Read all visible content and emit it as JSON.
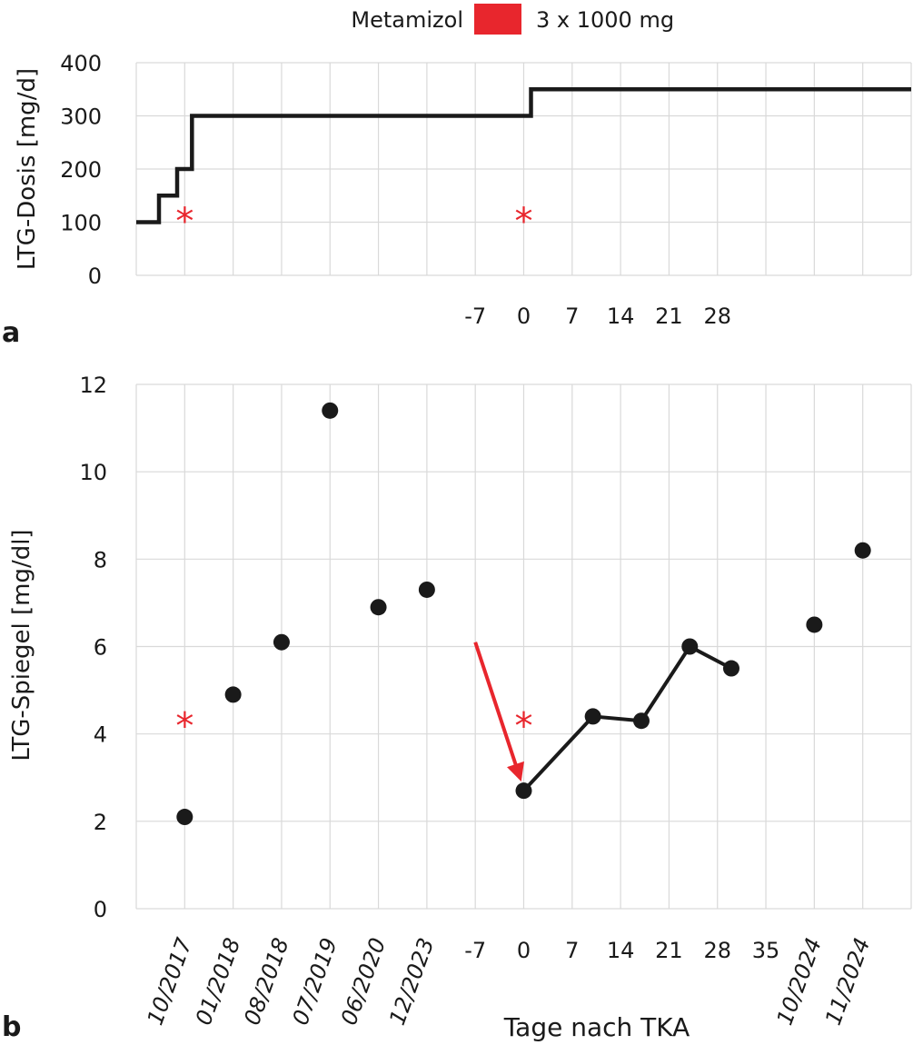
{
  "legend": {
    "label": "Metamizol",
    "swatch_color": "#e8262d",
    "dose": "3 x 1000 mg"
  },
  "colors": {
    "line": "#1a1a1a",
    "grid": "#d9d9d9",
    "marker": "#e8262d"
  },
  "chart_data": [
    {
      "panel_label": "a",
      "type": "line",
      "title": "",
      "ylabel": "LTG-Dosis  [mg/d]",
      "ylim": [
        0,
        400
      ],
      "y_ticks": [
        "0",
        "100",
        "200",
        "300",
        "400"
      ],
      "x_tick_labels": [
        "-7",
        "0",
        "7",
        "14",
        "21",
        "28"
      ],
      "grid": true,
      "series": [
        {
          "steps": [
            {
              "x": "start",
              "y": 100
            },
            {
              "x": "10/2017",
              "y": 150
            },
            {
              "x": "10/2017",
              "y": 200
            },
            {
              "x": "01/2018",
              "y": 300
            },
            {
              "x": "0",
              "y": 300
            },
            {
              "x": "0",
              "y": 350
            },
            {
              "x": "11/2024",
              "y": 350
            }
          ]
        }
      ],
      "annotations": [
        {
          "symbol": "*",
          "x": "10/2017",
          "y": 120
        },
        {
          "symbol": "*",
          "x": "0",
          "y": 120
        }
      ]
    },
    {
      "panel_label": "b",
      "type": "scatter",
      "title": "",
      "ylabel": "LTG-Spiegel  [mg/dl]",
      "xlabel": "Tage nach TKA",
      "ylim": [
        0,
        12
      ],
      "y_ticks": [
        "0",
        "2",
        "4",
        "6",
        "8",
        "10",
        "12"
      ],
      "date_labels_left": [
        "10/2017",
        "01/2018",
        "08/2018",
        "07/2019",
        "06/2020",
        "12/2023"
      ],
      "day_labels": [
        "-7",
        "0",
        "7",
        "14",
        "21",
        "28",
        "35"
      ],
      "date_labels_right": [
        "10/2024",
        "11/2024"
      ],
      "grid": true,
      "points": [
        {
          "x": "10/2017",
          "y": 2.1
        },
        {
          "x": "01/2018",
          "y": 4.9
        },
        {
          "x": "08/2018",
          "y": 6.1
        },
        {
          "x": "07/2019",
          "y": 11.4
        },
        {
          "x": "06/2020",
          "y": 6.9
        },
        {
          "x": "12/2023",
          "y": 7.3
        },
        {
          "x": "10/2024",
          "y": 6.5
        },
        {
          "x": "11/2024",
          "y": 8.2
        }
      ],
      "series": [
        {
          "x_days": [
            0,
            10,
            17,
            24,
            30
          ],
          "values": [
            2.7,
            4.4,
            4.3,
            6.0,
            5.5
          ]
        }
      ],
      "annotations": [
        {
          "symbol": "*",
          "x": "10/2017",
          "y": 4.4
        },
        {
          "symbol": "*",
          "x": "0",
          "y": 4.4
        },
        {
          "type": "arrow",
          "from": {
            "x": "-7",
            "y": 6.1
          },
          "to": {
            "x": "0",
            "y": 2.7
          }
        }
      ]
    }
  ]
}
